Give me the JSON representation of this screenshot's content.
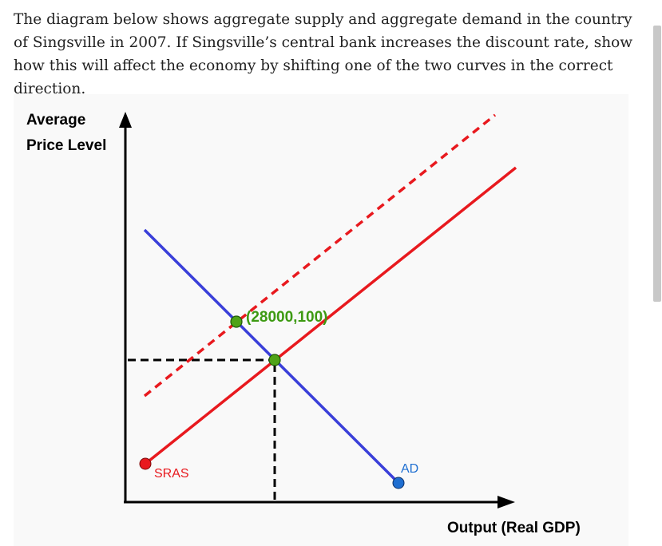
{
  "question_text": "The diagram below shows aggregate supply and aggregate demand in the country of Singsville in 2007. If Singsville’s central bank increases the discount rate, show how this will affect the economy by shifting one of the two curves in the correct direction.",
  "diagram": {
    "y_axis_label_line1": "Average",
    "y_axis_label_line2": "Price Level",
    "x_axis_label": "Output (Real GDP)",
    "sras_label": "SRAS",
    "ad_label": "AD",
    "point_label": "(28000,100)",
    "colors": {
      "sras": "#e8191e",
      "ad": "#3a3fd9",
      "point": "#3d9a12",
      "axis": "#000000",
      "ad_handle": "#1f6fd1"
    }
  }
}
